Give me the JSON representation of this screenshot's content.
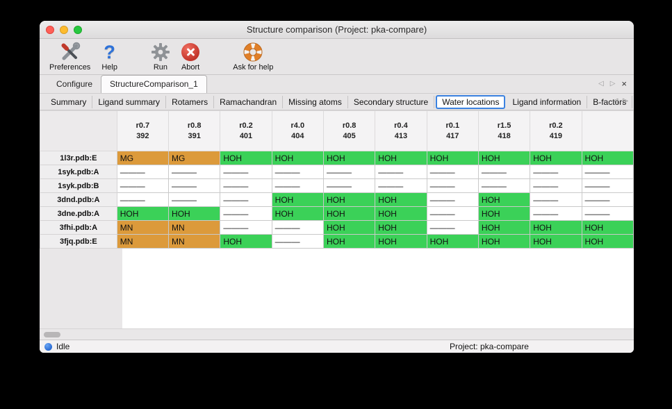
{
  "window": {
    "title": "Structure comparison (Project: pka-compare)"
  },
  "toolbar": {
    "preferences_label": "Preferences",
    "help_label": "Help",
    "run_label": "Run",
    "abort_label": "Abort",
    "ask_label": "Ask for help"
  },
  "icons": {
    "back": "◁",
    "forward": "▷",
    "close": "×"
  },
  "tabs": {
    "primary": [
      {
        "label": "Configure",
        "selected": false
      },
      {
        "label": "StructureComparison_1",
        "selected": true
      }
    ],
    "secondary": [
      {
        "label": "Summary"
      },
      {
        "label": "Ligand summary"
      },
      {
        "label": "Rotamers"
      },
      {
        "label": "Ramachandran"
      },
      {
        "label": "Missing atoms"
      },
      {
        "label": "Secondary structure"
      },
      {
        "label": "Water locations",
        "selected": true
      },
      {
        "label": "Ligand information"
      },
      {
        "label": "B-factors"
      }
    ]
  },
  "table": {
    "columns": [
      {
        "rmsd": "r0.7",
        "num": "392"
      },
      {
        "rmsd": "r0.8",
        "num": "391"
      },
      {
        "rmsd": "r0.2",
        "num": "401"
      },
      {
        "rmsd": "r4.0",
        "num": "404"
      },
      {
        "rmsd": "r0.8",
        "num": "405"
      },
      {
        "rmsd": "r0.4",
        "num": "413"
      },
      {
        "rmsd": "r0.1",
        "num": "417"
      },
      {
        "rmsd": "r1.5",
        "num": "418"
      },
      {
        "rmsd": "r0.2",
        "num": "419"
      },
      {
        "rmsd": "",
        "num": ""
      }
    ],
    "rows": [
      {
        "label": "1l3r.pdb:E",
        "cells": [
          {
            "text": "MG",
            "type": "metal"
          },
          {
            "text": "MG",
            "type": "metal"
          },
          {
            "text": "HOH",
            "type": "water"
          },
          {
            "text": "HOH",
            "type": "water"
          },
          {
            "text": "HOH",
            "type": "water"
          },
          {
            "text": "HOH",
            "type": "water"
          },
          {
            "text": "HOH",
            "type": "water"
          },
          {
            "text": "HOH",
            "type": "water"
          },
          {
            "text": "HOH",
            "type": "water"
          },
          {
            "text": "HOH",
            "type": "water"
          }
        ]
      },
      {
        "label": "1syk.pdb:A",
        "cells": [
          {
            "text": "———",
            "type": "empty"
          },
          {
            "text": "———",
            "type": "empty"
          },
          {
            "text": "———",
            "type": "empty"
          },
          {
            "text": "———",
            "type": "empty"
          },
          {
            "text": "———",
            "type": "empty"
          },
          {
            "text": "———",
            "type": "empty"
          },
          {
            "text": "———",
            "type": "empty"
          },
          {
            "text": "———",
            "type": "empty"
          },
          {
            "text": "———",
            "type": "empty"
          },
          {
            "text": "———",
            "type": "empty"
          }
        ]
      },
      {
        "label": "1syk.pdb:B",
        "cells": [
          {
            "text": "———",
            "type": "empty"
          },
          {
            "text": "———",
            "type": "empty"
          },
          {
            "text": "———",
            "type": "empty"
          },
          {
            "text": "———",
            "type": "empty"
          },
          {
            "text": "———",
            "type": "empty"
          },
          {
            "text": "———",
            "type": "empty"
          },
          {
            "text": "———",
            "type": "empty"
          },
          {
            "text": "———",
            "type": "empty"
          },
          {
            "text": "———",
            "type": "empty"
          },
          {
            "text": "———",
            "type": "empty"
          }
        ]
      },
      {
        "label": "3dnd.pdb:A",
        "cells": [
          {
            "text": "———",
            "type": "empty"
          },
          {
            "text": "———",
            "type": "empty"
          },
          {
            "text": "———",
            "type": "empty"
          },
          {
            "text": "HOH",
            "type": "water"
          },
          {
            "text": "HOH",
            "type": "water"
          },
          {
            "text": "HOH",
            "type": "water"
          },
          {
            "text": "———",
            "type": "empty"
          },
          {
            "text": "HOH",
            "type": "water"
          },
          {
            "text": "———",
            "type": "empty"
          },
          {
            "text": "———",
            "type": "empty"
          }
        ]
      },
      {
        "label": "3dne.pdb:A",
        "cells": [
          {
            "text": "HOH",
            "type": "water"
          },
          {
            "text": "HOH",
            "type": "water"
          },
          {
            "text": "———",
            "type": "empty"
          },
          {
            "text": "HOH",
            "type": "water"
          },
          {
            "text": "HOH",
            "type": "water"
          },
          {
            "text": "HOH",
            "type": "water"
          },
          {
            "text": "———",
            "type": "empty"
          },
          {
            "text": "HOH",
            "type": "water"
          },
          {
            "text": "———",
            "type": "empty"
          },
          {
            "text": "———",
            "type": "empty"
          }
        ]
      },
      {
        "label": "3fhi.pdb:A",
        "cells": [
          {
            "text": "MN",
            "type": "metal"
          },
          {
            "text": "MN",
            "type": "metal"
          },
          {
            "text": "———",
            "type": "empty"
          },
          {
            "text": "———",
            "type": "empty"
          },
          {
            "text": "HOH",
            "type": "water"
          },
          {
            "text": "HOH",
            "type": "water"
          },
          {
            "text": "———",
            "type": "empty"
          },
          {
            "text": "HOH",
            "type": "water"
          },
          {
            "text": "HOH",
            "type": "water"
          },
          {
            "text": "HOH",
            "type": "water"
          }
        ]
      },
      {
        "label": "3fjq.pdb:E",
        "cells": [
          {
            "text": "MN",
            "type": "metal"
          },
          {
            "text": "MN",
            "type": "metal"
          },
          {
            "text": "HOH",
            "type": "water"
          },
          {
            "text": "———",
            "type": "empty"
          },
          {
            "text": "HOH",
            "type": "water"
          },
          {
            "text": "HOH",
            "type": "water"
          },
          {
            "text": "HOH",
            "type": "water"
          },
          {
            "text": "HOH",
            "type": "water"
          },
          {
            "text": "HOH",
            "type": "water"
          },
          {
            "text": "HOH",
            "type": "water"
          }
        ]
      }
    ]
  },
  "statusbar": {
    "status": "Idle",
    "project": "Project: pka-compare"
  },
  "colors": {
    "water": "#3bd158",
    "metal": "#dc9a3b",
    "selected_tab_ring": "#3b82e0"
  }
}
